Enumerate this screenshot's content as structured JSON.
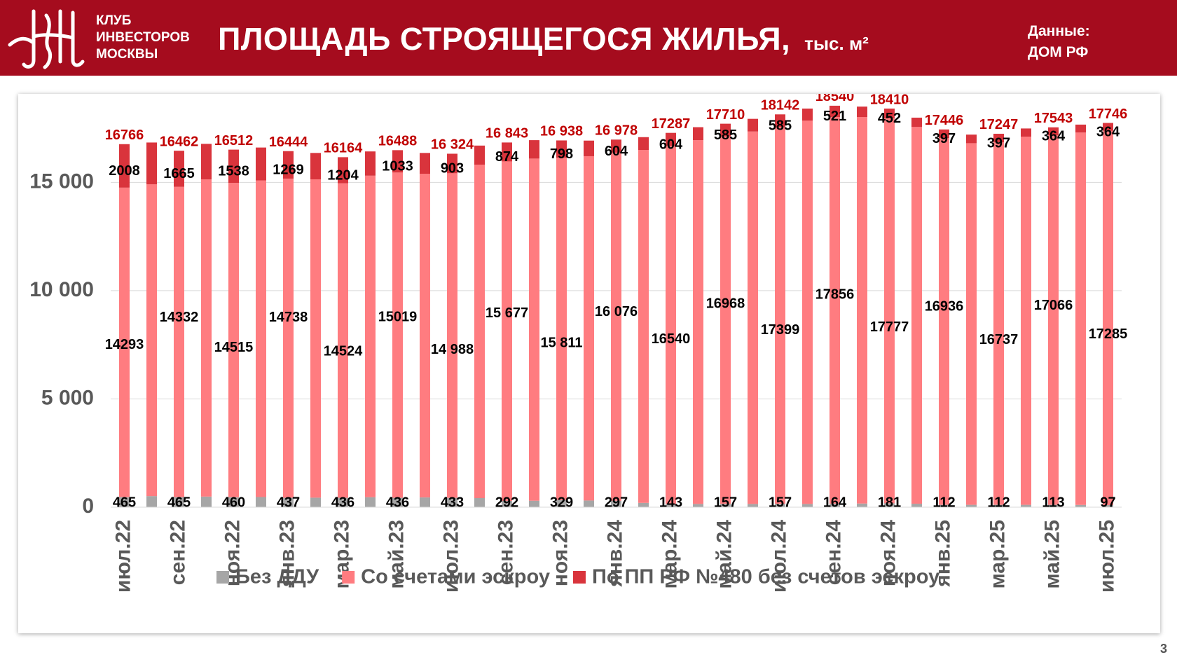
{
  "header": {
    "logo_lines": [
      "КЛУБ",
      "ИНВЕСТОРОВ",
      "МОСКВЫ"
    ],
    "title": "ПЛОЩАДЬ СТРОЯЩЕГОСЯ ЖИЛЬЯ,",
    "title_unit": "тыс. м²",
    "source_lines": [
      "Данные:",
      "ДОМ РФ"
    ],
    "logo_icon": "kim-monogram-logo"
  },
  "page_number": "3",
  "colors": {
    "header_bg": "#a50c1e",
    "bez_ddu": "#a6a6a6",
    "escrow": "#ff7c80",
    "pp480": "#d9343c",
    "total_label": "#c00000"
  },
  "chart_data": {
    "type": "bar",
    "stacked": true,
    "ylim": [
      0,
      18700
    ],
    "yticks": [
      0,
      5000,
      10000,
      15000
    ],
    "ytick_labels": [
      "0",
      "5 000",
      "10 000",
      "15 000"
    ],
    "grid": true,
    "legend_position": "bottom",
    "categories": [
      "июл.22",
      "авг.22",
      "сен.22",
      "окт.22",
      "ноя.22",
      "дек.22",
      "янв.23",
      "фев.23",
      "мар.23",
      "апр.23",
      "май.23",
      "июн.23",
      "июл.23",
      "авг.23",
      "сен.23",
      "окт.23",
      "ноя.23",
      "дек.23",
      "янв.24",
      "фев.24",
      "мар.24",
      "апр.24",
      "май.24",
      "июн.24",
      "июл.24",
      "авг.24",
      "сен.24",
      "окт.24",
      "ноя.24",
      "дек.24",
      "янв.25",
      "фев.25",
      "мар.25",
      "апр.25",
      "май.25",
      "июн.25",
      "июл.25"
    ],
    "shown_category_labels": [
      "июл.22",
      "сен.22",
      "ноя.22",
      "янв.23",
      "мар.23",
      "май.23",
      "июл.23",
      "сен.23",
      "ноя.23",
      "янв.24",
      "мар.24",
      "май.24",
      "июл.24",
      "сен.24",
      "ноя.24",
      "янв.25",
      "мар.25",
      "май.25",
      "июл.25"
    ],
    "series": [
      {
        "name": "Без ДДУ",
        "values": [
          465,
          512,
          465,
          490,
          460,
          470,
          437,
          440,
          436,
          460,
          436,
          450,
          433,
          420,
          292,
          300,
          329,
          310,
          297,
          200,
          143,
          150,
          157,
          150,
          157,
          150,
          164,
          170,
          181,
          160,
          112,
          110,
          112,
          110,
          113,
          105,
          97
        ],
        "labels": [
          "465",
          null,
          "465",
          null,
          "460",
          null,
          "437",
          null,
          "436",
          null,
          "436",
          null,
          "433",
          null,
          "292",
          null,
          "329",
          null,
          "297",
          null,
          "143",
          null,
          "157",
          null,
          "157",
          null,
          "164",
          null,
          "181",
          null,
          "112",
          null,
          "112",
          null,
          "113",
          null,
          "97"
        ]
      },
      {
        "name": "Со счетами эскроу",
        "values": [
          14293,
          14400,
          14332,
          14650,
          14515,
          14620,
          14738,
          14700,
          14524,
          14850,
          15019,
          14950,
          14988,
          15400,
          15677,
          15800,
          15811,
          15900,
          16076,
          16300,
          16540,
          16800,
          16968,
          17200,
          17399,
          17700,
          17856,
          17850,
          17777,
          17400,
          16936,
          16700,
          16737,
          17000,
          17066,
          17200,
          17285
        ],
        "labels": [
          "14293",
          null,
          "14332",
          null,
          "14515",
          null,
          "14738",
          null,
          "14524",
          null,
          "15019",
          null,
          "14 988",
          null,
          "15 677",
          null,
          "15 811",
          null,
          "16 076",
          null,
          "16540",
          null,
          "16968",
          null,
          "17399",
          null,
          "17856",
          null,
          "17777",
          null,
          "16936",
          null,
          "16737",
          null,
          "17066",
          null,
          "17285"
        ]
      },
      {
        "name": "По ПП РФ №480 без счетов эскроу",
        "values": [
          2008,
          1930,
          1665,
          1640,
          1538,
          1520,
          1269,
          1220,
          1204,
          1120,
          1033,
          960,
          903,
          880,
          874,
          850,
          798,
          720,
          604,
          590,
          604,
          600,
          585,
          585,
          585,
          560,
          521,
          480,
          452,
          430,
          397,
          397,
          397,
          380,
          364,
          364,
          364
        ],
        "labels": [
          "2008",
          null,
          "1665",
          null,
          "1538",
          null,
          "1269",
          null,
          "1204",
          null,
          "1033",
          null,
          "903",
          null,
          "874",
          null,
          "798",
          null,
          "604",
          null,
          "604",
          null,
          "585",
          null,
          "585",
          null,
          "521",
          null,
          "452",
          null,
          "397",
          null,
          "397",
          null,
          "364",
          null,
          "364"
        ]
      }
    ],
    "total_labels": [
      "16766",
      null,
      "16462",
      null,
      "16512",
      null,
      "16444",
      null,
      "16164",
      null,
      "16488",
      null,
      "16 324",
      null,
      "16 843",
      null,
      "16 938",
      null,
      "16 978",
      null,
      "17287",
      null,
      "17710",
      null,
      "18142",
      null,
      "18540",
      null,
      "18410",
      null,
      "17446",
      null,
      "17247",
      null,
      "17543",
      null,
      "17746"
    ],
    "legend": [
      "Без ДДУ",
      "Со счетами эскроу",
      "По ПП РФ №480 без счетов эскроу"
    ]
  }
}
